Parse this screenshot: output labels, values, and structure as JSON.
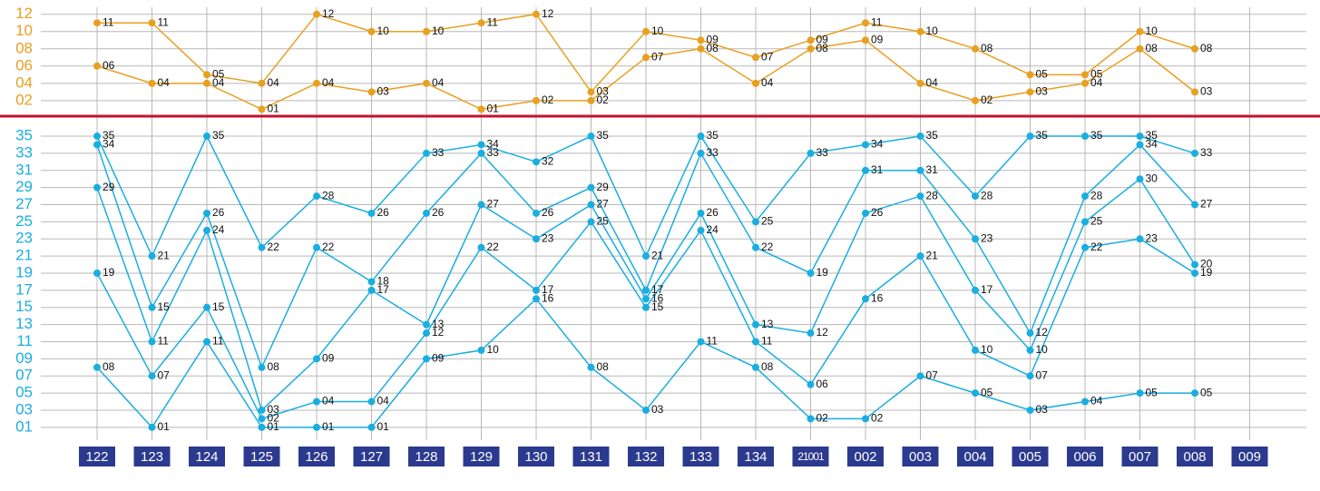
{
  "chart_data": [
    {
      "type": "line",
      "ylim": [
        0.2,
        12.6
      ],
      "yticks": [
        {
          "value": 2,
          "label": "02"
        },
        {
          "value": 4,
          "label": "04"
        },
        {
          "value": 6,
          "label": "06"
        },
        {
          "value": 8,
          "label": "08"
        },
        10,
        12
      ],
      "grid": true,
      "axis_color": "#e8a020",
      "series": [
        {
          "color": "#e8a020",
          "values": [
            11,
            11,
            5,
            4,
            12,
            10,
            10,
            11,
            12,
            3,
            10,
            9,
            7,
            9,
            11,
            10,
            8,
            5,
            5,
            10,
            8,
            null
          ],
          "value_labels": [
            "11",
            "11",
            "05",
            "04",
            "12",
            "10",
            "10",
            "11",
            "12",
            "03",
            "10",
            "09",
            "07",
            "09",
            "11",
            "10",
            "08",
            "05",
            "05",
            "10",
            "08",
            null
          ]
        },
        {
          "color": "#e8a020",
          "values": [
            6,
            4,
            4,
            1,
            4,
            3,
            4,
            1,
            2,
            2,
            7,
            8,
            4,
            8,
            9,
            4,
            2,
            3,
            4,
            8,
            3,
            null
          ],
          "value_labels": [
            "06",
            "04",
            "04",
            "01",
            "04",
            "03",
            "04",
            "01",
            "02",
            "02",
            "07",
            "08",
            "04",
            "08",
            "09",
            "04",
            "02",
            "03",
            "04",
            "08",
            "03",
            null
          ]
        }
      ]
    },
    {
      "type": "line",
      "ylim": [
        -0.5,
        36
      ],
      "categories": [
        "122",
        "123",
        "124",
        "125",
        "126",
        "127",
        "128",
        "129",
        "130",
        "131",
        "132",
        "133",
        "134",
        "21001",
        "002",
        "003",
        "004",
        "005",
        "006",
        "007",
        "008",
        "009"
      ],
      "yticks": [
        {
          "value": 1,
          "label": "01"
        },
        {
          "value": 3,
          "label": "03"
        },
        {
          "value": 5,
          "label": "05"
        },
        {
          "value": 7,
          "label": "07"
        },
        {
          "value": 9,
          "label": "09"
        },
        11,
        13,
        15,
        17,
        19,
        21,
        23,
        25,
        27,
        29,
        31,
        33,
        35
      ],
      "grid": true,
      "axis_color": "#1aaee0",
      "series": [
        {
          "color": "#1aaee0",
          "values": [
            8,
            1,
            11,
            1,
            1,
            1,
            9,
            10,
            16,
            8,
            3,
            11,
            8,
            2,
            2,
            7,
            5,
            3,
            4,
            5,
            5,
            null
          ],
          "value_labels": [
            "08",
            "01",
            "11",
            "01",
            "01",
            "01",
            "09",
            "10",
            "16",
            "08",
            "03",
            "11",
            "08",
            "02",
            "02",
            "07",
            "05",
            "03",
            "04",
            "05",
            "05",
            null
          ]
        },
        {
          "color": "#1aaee0",
          "values": [
            19,
            7,
            15,
            2,
            4,
            4,
            12,
            22,
            17,
            25,
            15,
            24,
            11,
            6,
            16,
            21,
            10,
            7,
            22,
            23,
            19,
            null
          ],
          "value_labels": [
            "19",
            "07",
            "15",
            "02",
            "04",
            "04",
            "12",
            "22",
            "17",
            "25",
            "15",
            "24",
            "11",
            "06",
            "16",
            "21",
            "10",
            "07",
            "22",
            "23",
            "19",
            null
          ]
        },
        {
          "color": "#1aaee0",
          "values": [
            29,
            11,
            24,
            3,
            9,
            17,
            13,
            27,
            23,
            27,
            16,
            26,
            13,
            12,
            26,
            28,
            17,
            10,
            25,
            30,
            20,
            null
          ],
          "value_labels": [
            "29",
            "11",
            "24",
            "03",
            "09",
            "17",
            "13",
            "27",
            "23",
            "27",
            "16",
            "26",
            "13",
            "12",
            "26",
            "28",
            "17",
            "10",
            "25",
            "30",
            "20",
            null
          ]
        },
        {
          "color": "#1aaee0",
          "values": [
            34,
            15,
            26,
            8,
            22,
            18,
            26,
            33,
            26,
            29,
            17,
            33,
            22,
            19,
            31,
            31,
            23,
            12,
            28,
            34,
            27,
            null
          ],
          "value_labels": [
            "34",
            "15",
            "26",
            "08",
            "22",
            "18",
            "26",
            "33",
            "26",
            "29",
            "17",
            "33",
            "22",
            "19",
            "31",
            "31",
            "23",
            "12",
            "28",
            "34",
            "27",
            null
          ]
        },
        {
          "color": "#1aaee0",
          "values": [
            35,
            21,
            35,
            22,
            28,
            26,
            33,
            34,
            32,
            35,
            21,
            35,
            25,
            33,
            34,
            35,
            28,
            35,
            35,
            35,
            33,
            null
          ],
          "value_labels": [
            "35",
            "21",
            "35",
            "22",
            "28",
            "26",
            "33",
            "34",
            "32",
            "35",
            "21",
            "35",
            "25",
            "33",
            "34",
            "35",
            "28",
            "35",
            "35",
            "35",
            "33",
            null
          ]
        }
      ]
    }
  ]
}
